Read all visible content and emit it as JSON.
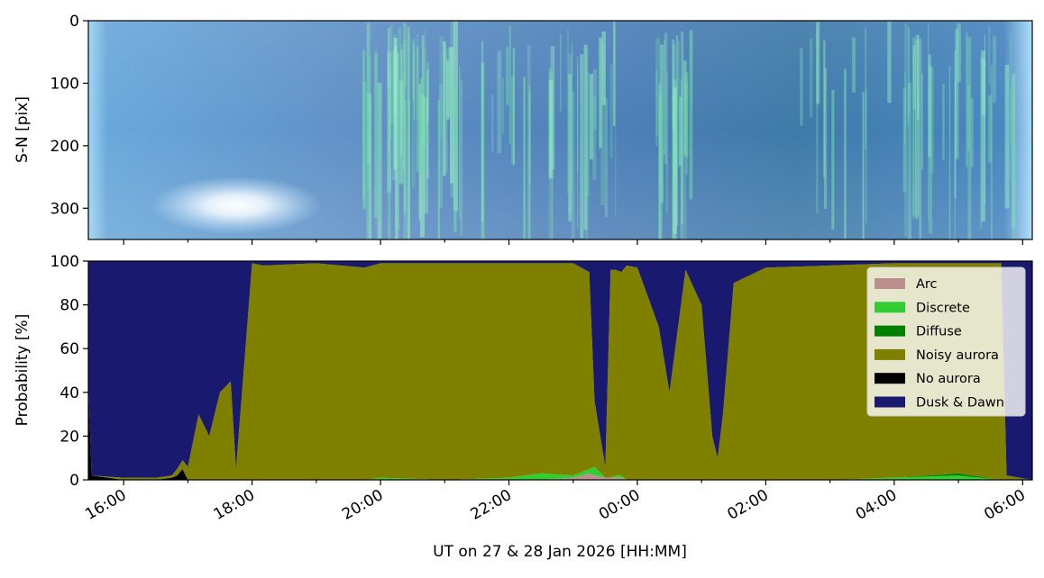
{
  "colors": {
    "arc": "#bc8f8f",
    "discrete": "#32cd32",
    "diffuse": "#008000",
    "noisy_aurora": "#808000",
    "no_aurora": "#000000",
    "dusk_dawn": "#191970"
  },
  "chart_data": [
    {
      "type": "heatmap",
      "panel": "keogram",
      "ylabel": "S-N [pix]",
      "ylim": [
        350,
        0
      ],
      "yticks": [
        0,
        100,
        200,
        300
      ],
      "ytick_labels": [
        "0",
        "100",
        "200",
        "300"
      ],
      "x_start": "15:27",
      "x_end": "06:09",
      "description_of_content": "green aurora streaks on blue background"
    },
    {
      "type": "area",
      "panel": "classification",
      "ylabel": "Probability [%]",
      "xlabel": "UT on 27 & 28 Jan 2026 [HH:MM]",
      "ylim": [
        0,
        100
      ],
      "yticks": [
        0,
        20,
        40,
        60,
        80,
        100
      ],
      "ytick_labels": [
        "0",
        "20",
        "40",
        "60",
        "80",
        "100"
      ],
      "xlim": [
        "15:27",
        "06:09"
      ],
      "xticks": [
        "16:00",
        "18:00",
        "20:00",
        "22:00",
        "00:00",
        "02:00",
        "04:00",
        "06:00"
      ],
      "stacked": true,
      "legend_position": "upper right",
      "x": [
        "15:27",
        "15:30",
        "16:00",
        "16:30",
        "16:45",
        "16:50",
        "16:55",
        "17:00",
        "17:10",
        "17:20",
        "17:30",
        "17:40",
        "17:45",
        "18:00",
        "18:10",
        "19:00",
        "19:45",
        "20:00",
        "21:00",
        "22:00",
        "22:30",
        "23:00",
        "23:15",
        "23:20",
        "23:30",
        "23:35",
        "23:40",
        "23:45",
        "23:50",
        "00:00",
        "00:20",
        "00:30",
        "00:45",
        "01:00",
        "01:10",
        "01:15",
        "01:20",
        "01:30",
        "02:00",
        "03:00",
        "04:00",
        "05:00",
        "05:40",
        "05:45",
        "06:09"
      ],
      "series": [
        {
          "name": "Arc",
          "values": [
            0,
            0,
            0,
            0,
            0,
            0,
            0,
            0,
            0,
            0,
            0,
            0,
            0,
            0,
            0,
            0,
            0,
            0,
            0,
            0,
            0,
            1,
            3,
            2,
            1,
            1,
            1,
            1,
            0,
            0,
            0,
            0,
            0,
            0,
            0,
            0,
            0,
            0,
            0,
            0,
            0,
            0,
            0,
            0,
            0
          ]
        },
        {
          "name": "Discrete",
          "values": [
            0,
            0,
            0,
            0,
            0,
            0,
            0,
            0,
            0,
            0,
            0,
            0,
            0,
            0,
            0,
            0,
            0,
            1,
            0,
            1,
            3,
            1,
            2,
            4,
            0,
            0,
            1,
            1,
            0,
            0,
            0,
            0,
            0,
            0,
            0,
            0,
            0,
            0,
            0,
            0,
            1,
            2,
            0,
            0,
            0
          ]
        },
        {
          "name": "Diffuse",
          "values": [
            0,
            0,
            0,
            0,
            0,
            0,
            0,
            0,
            0,
            0,
            0,
            0,
            0,
            0,
            0,
            0,
            0,
            0,
            0,
            0,
            0,
            0,
            0,
            0,
            0,
            0,
            0,
            0,
            0,
            0,
            0,
            0,
            0,
            0,
            0,
            0,
            0,
            0,
            0,
            0,
            0,
            1,
            0,
            0,
            0
          ]
        },
        {
          "name": "Noisy aurora",
          "values": [
            0,
            0,
            1,
            1,
            1,
            3,
            4,
            6,
            30,
            20,
            40,
            45,
            5,
            99,
            98,
            99,
            97,
            98,
            99,
            98,
            96,
            97,
            90,
            30,
            5,
            95,
            94,
            93,
            98,
            97,
            70,
            40,
            96,
            80,
            20,
            10,
            30,
            90,
            97,
            98,
            98,
            96,
            99,
            2,
            0
          ]
        },
        {
          "name": "No aurora",
          "values": [
            45,
            2,
            0,
            0,
            1,
            2,
            5,
            0,
            0,
            0,
            0,
            0,
            0,
            0,
            0,
            0,
            0,
            0,
            0,
            0,
            0,
            0,
            0,
            0,
            0,
            0,
            0,
            0,
            0,
            0,
            0,
            0,
            0,
            0,
            0,
            0,
            0,
            0,
            0,
            0,
            0,
            0,
            0,
            0,
            0
          ]
        },
        {
          "name": "Dusk & Dawn",
          "values": [
            55,
            98,
            99,
            99,
            98,
            95,
            91,
            94,
            70,
            80,
            60,
            55,
            95,
            1,
            2,
            1,
            3,
            1,
            1,
            1,
            1,
            2,
            5,
            64,
            94,
            4,
            5,
            6,
            2,
            3,
            30,
            60,
            4,
            20,
            80,
            90,
            70,
            10,
            3,
            2,
            1,
            1,
            1,
            98,
            100
          ]
        }
      ]
    }
  ]
}
